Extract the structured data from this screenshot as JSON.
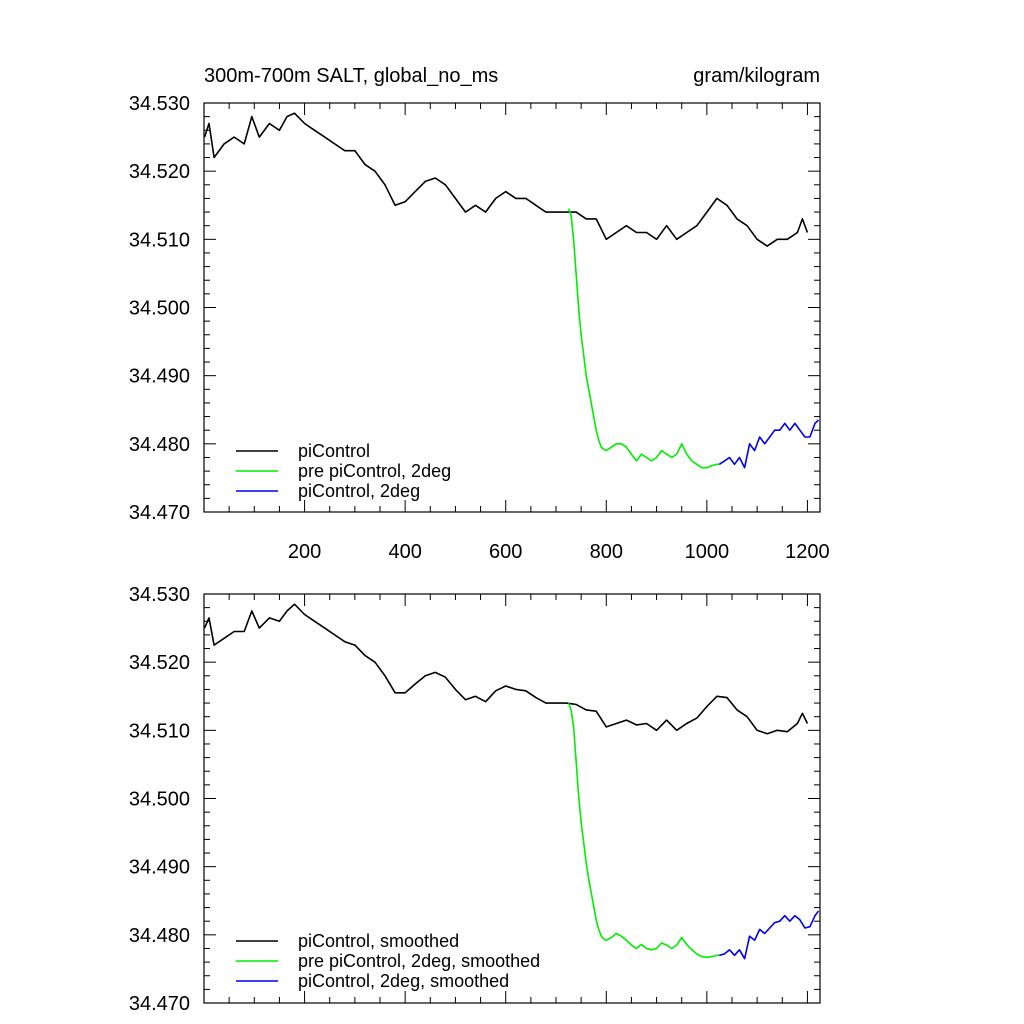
{
  "chart_data": [
    {
      "type": "line",
      "title_left": "300m-700m SALT, global_no_ms",
      "title_right": "gram/kilogram",
      "xlim": [
        0,
        1225
      ],
      "ylim": [
        34.47,
        34.53
      ],
      "xticks": [
        200,
        400,
        600,
        800,
        1000,
        1200
      ],
      "xtick_labels": [
        "200",
        "400",
        "600",
        "800",
        "1000",
        "1200"
      ],
      "yticks": [
        34.47,
        34.48,
        34.49,
        34.5,
        34.51,
        34.52,
        34.53
      ],
      "ytick_labels": [
        "34.470",
        "34.480",
        "34.490",
        "34.500",
        "34.510",
        "34.520",
        "34.530"
      ],
      "legend_position": "bottom-left",
      "series": [
        {
          "name": "piControl",
          "color": "#000000",
          "x": [
            1,
            10,
            20,
            40,
            60,
            80,
            95,
            110,
            130,
            150,
            165,
            180,
            200,
            220,
            240,
            260,
            280,
            300,
            320,
            340,
            360,
            380,
            400,
            420,
            440,
            460,
            480,
            500,
            520,
            540,
            560,
            580,
            600,
            620,
            640,
            660,
            680,
            700,
            720,
            740,
            760,
            780,
            800,
            820,
            840,
            860,
            880,
            900,
            920,
            940,
            960,
            980,
            1000,
            1020,
            1040,
            1060,
            1080,
            1100,
            1120,
            1140,
            1160,
            1180,
            1190,
            1200
          ],
          "y": [
            34.525,
            34.527,
            34.522,
            34.524,
            34.525,
            34.524,
            34.528,
            34.525,
            34.527,
            34.526,
            34.528,
            34.5285,
            34.527,
            34.526,
            34.525,
            34.524,
            34.523,
            34.523,
            34.521,
            34.52,
            34.518,
            34.515,
            34.5155,
            34.517,
            34.5185,
            34.519,
            34.518,
            34.516,
            34.514,
            34.515,
            34.514,
            34.516,
            34.517,
            34.516,
            34.516,
            34.515,
            34.514,
            34.514,
            34.514,
            34.514,
            34.513,
            34.513,
            34.51,
            34.511,
            34.512,
            34.511,
            34.511,
            34.51,
            34.512,
            34.51,
            34.511,
            34.512,
            34.514,
            34.516,
            34.515,
            34.513,
            34.512,
            34.51,
            34.509,
            34.51,
            34.51,
            34.511,
            34.513,
            34.511
          ]
        },
        {
          "name": "pre piControl, 2deg",
          "color": "#00ee00",
          "x": [
            725,
            730,
            735,
            740,
            745,
            750,
            755,
            760,
            765,
            770,
            775,
            780,
            785,
            790,
            795,
            800,
            810,
            820,
            830,
            840,
            850,
            860,
            870,
            880,
            890,
            900,
            910,
            920,
            930,
            940,
            950,
            960,
            970,
            980,
            990,
            1000,
            1010,
            1020,
            1025
          ],
          "y": [
            34.5145,
            34.5135,
            34.51,
            34.505,
            34.5,
            34.496,
            34.493,
            34.49,
            34.488,
            34.486,
            34.484,
            34.482,
            34.4805,
            34.4795,
            34.4792,
            34.479,
            34.4795,
            34.48,
            34.48,
            34.4795,
            34.4785,
            34.4775,
            34.4785,
            34.478,
            34.4775,
            34.478,
            34.479,
            34.4785,
            34.478,
            34.4785,
            34.48,
            34.4785,
            34.4775,
            34.477,
            34.4765,
            34.4765,
            34.4768,
            34.477,
            34.477
          ]
        },
        {
          "name": "piControl, 2deg",
          "color": "#0000ee",
          "x": [
            1025,
            1035,
            1045,
            1055,
            1065,
            1075,
            1085,
            1095,
            1105,
            1115,
            1125,
            1135,
            1145,
            1155,
            1165,
            1175,
            1185,
            1195,
            1205,
            1215,
            1222
          ],
          "y": [
            34.477,
            34.4775,
            34.478,
            34.477,
            34.478,
            34.4765,
            34.48,
            34.479,
            34.481,
            34.48,
            34.481,
            34.482,
            34.482,
            34.483,
            34.482,
            34.483,
            34.482,
            34.481,
            34.481,
            34.483,
            34.4835
          ]
        }
      ]
    },
    {
      "type": "line",
      "xlim": [
        0,
        1225
      ],
      "ylim": [
        34.47,
        34.53
      ],
      "xticks": [
        200,
        400,
        600,
        800,
        1000,
        1200
      ],
      "yticks": [
        34.47,
        34.48,
        34.49,
        34.5,
        34.51,
        34.52,
        34.53
      ],
      "ytick_labels": [
        "34.470",
        "34.480",
        "34.490",
        "34.500",
        "34.510",
        "34.520",
        "34.530"
      ],
      "legend_position": "bottom-left",
      "series": [
        {
          "name": "piControl, smoothed",
          "color": "#000000",
          "x": [
            1,
            10,
            20,
            40,
            60,
            80,
            95,
            110,
            130,
            150,
            165,
            180,
            200,
            220,
            240,
            260,
            280,
            300,
            320,
            340,
            360,
            380,
            400,
            420,
            440,
            460,
            480,
            500,
            520,
            540,
            560,
            580,
            600,
            620,
            640,
            660,
            680,
            700,
            720,
            740,
            760,
            780,
            800,
            820,
            840,
            860,
            880,
            900,
            920,
            940,
            960,
            980,
            1000,
            1020,
            1040,
            1060,
            1080,
            1100,
            1120,
            1140,
            1160,
            1180,
            1190,
            1200
          ],
          "y": [
            34.525,
            34.5265,
            34.5225,
            34.5235,
            34.5245,
            34.5245,
            34.5275,
            34.525,
            34.5265,
            34.526,
            34.5275,
            34.5285,
            34.527,
            34.526,
            34.525,
            34.524,
            34.523,
            34.5225,
            34.521,
            34.52,
            34.518,
            34.5155,
            34.5155,
            34.5168,
            34.518,
            34.5185,
            34.5178,
            34.516,
            34.5145,
            34.515,
            34.5142,
            34.5158,
            34.5165,
            34.516,
            34.5158,
            34.5148,
            34.514,
            34.514,
            34.514,
            34.5138,
            34.513,
            34.5128,
            34.5105,
            34.511,
            34.5115,
            34.5108,
            34.511,
            34.51,
            34.5115,
            34.51,
            34.511,
            34.5118,
            34.5135,
            34.515,
            34.5148,
            34.513,
            34.512,
            34.51,
            34.5095,
            34.51,
            34.5098,
            34.511,
            34.5125,
            34.511
          ]
        },
        {
          "name": "pre piControl, 2deg, smoothed",
          "color": "#00ee00",
          "x": [
            725,
            730,
            735,
            740,
            745,
            750,
            755,
            760,
            765,
            770,
            775,
            780,
            785,
            790,
            795,
            800,
            810,
            820,
            830,
            840,
            850,
            860,
            870,
            880,
            890,
            900,
            910,
            920,
            930,
            940,
            950,
            960,
            970,
            980,
            990,
            1000,
            1010,
            1020,
            1025
          ],
          "y": [
            34.514,
            34.513,
            34.5105,
            34.5055,
            34.5005,
            34.4965,
            34.4935,
            34.4905,
            34.4882,
            34.4862,
            34.4842,
            34.4822,
            34.4808,
            34.4798,
            34.4794,
            34.4792,
            34.4796,
            34.4802,
            34.4798,
            34.4792,
            34.4785,
            34.478,
            34.4786,
            34.478,
            34.4778,
            34.478,
            34.4788,
            34.4785,
            34.478,
            34.4785,
            34.4796,
            34.4786,
            34.4778,
            34.4772,
            34.4768,
            34.4767,
            34.4768,
            34.477,
            34.477
          ]
        },
        {
          "name": "piControl, 2deg, smoothed",
          "color": "#0000ee",
          "x": [
            1025,
            1035,
            1045,
            1055,
            1065,
            1075,
            1085,
            1095,
            1105,
            1115,
            1125,
            1135,
            1145,
            1155,
            1165,
            1175,
            1185,
            1195,
            1205,
            1215,
            1222
          ],
          "y": [
            34.477,
            34.4772,
            34.4778,
            34.477,
            34.4778,
            34.4765,
            34.4798,
            34.4792,
            34.4808,
            34.4802,
            34.481,
            34.4818,
            34.482,
            34.4828,
            34.482,
            34.4828,
            34.4822,
            34.481,
            34.4812,
            34.4828,
            34.4835
          ]
        }
      ]
    }
  ]
}
